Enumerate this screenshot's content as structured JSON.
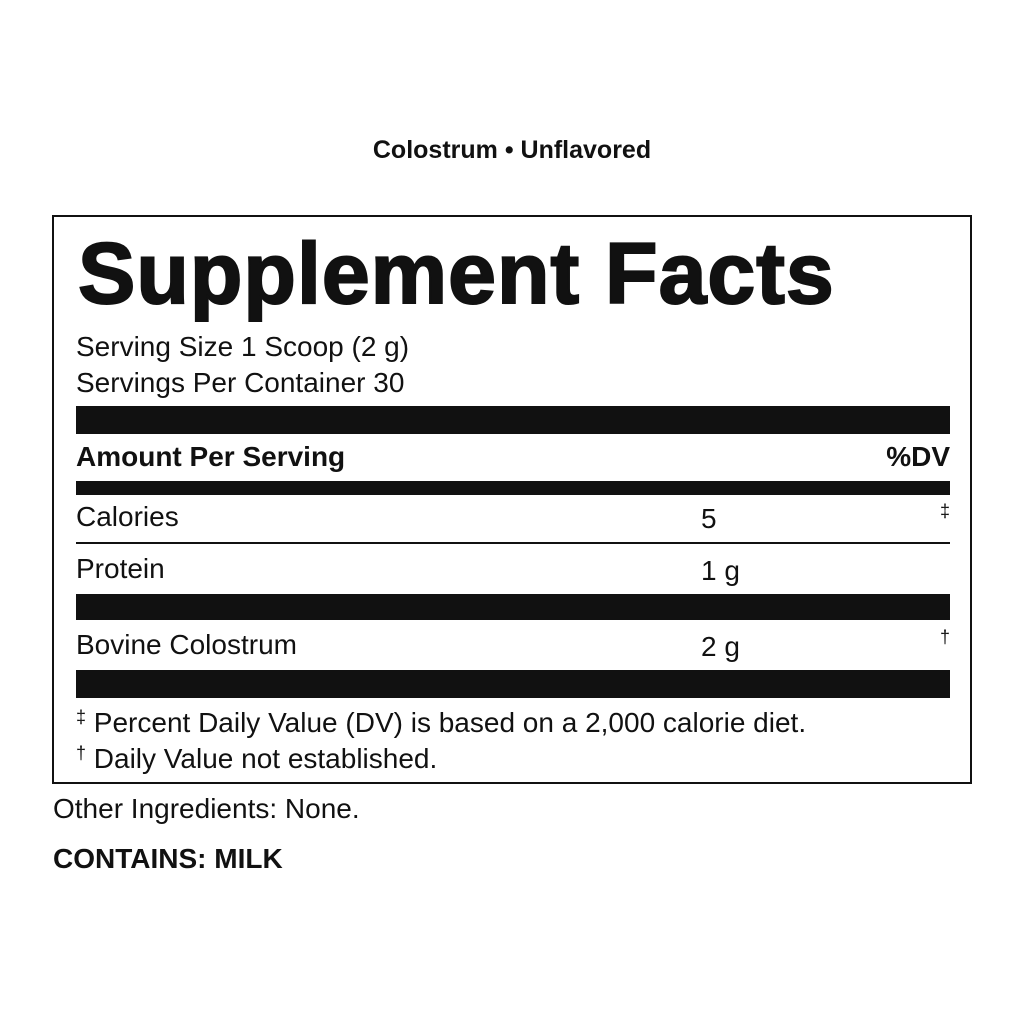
{
  "subtitle": "Colostrum • Unflavored",
  "title": "Supplement Facts",
  "serving_size": "Serving Size 1 Scoop (2 g)",
  "servings_per_container": "Servings Per Container 30",
  "header": {
    "amount": "Amount Per Serving",
    "dv": "%DV"
  },
  "rows": [
    {
      "name": "Calories",
      "amount": "5",
      "dv": "‡"
    },
    {
      "name": "Protein",
      "amount": "1 g",
      "dv": ""
    },
    {
      "name": "Bovine Colostrum",
      "amount": "2 g",
      "dv": "†"
    }
  ],
  "footnotes": [
    {
      "symbol": "‡",
      "text": "Percent Daily Value (DV) is based on a 2,000 calorie diet."
    },
    {
      "symbol": "†",
      "text": "Daily Value not established."
    }
  ],
  "other_ingredients": "Other Ingredients: None.",
  "contains": "CONTAINS: MILK"
}
